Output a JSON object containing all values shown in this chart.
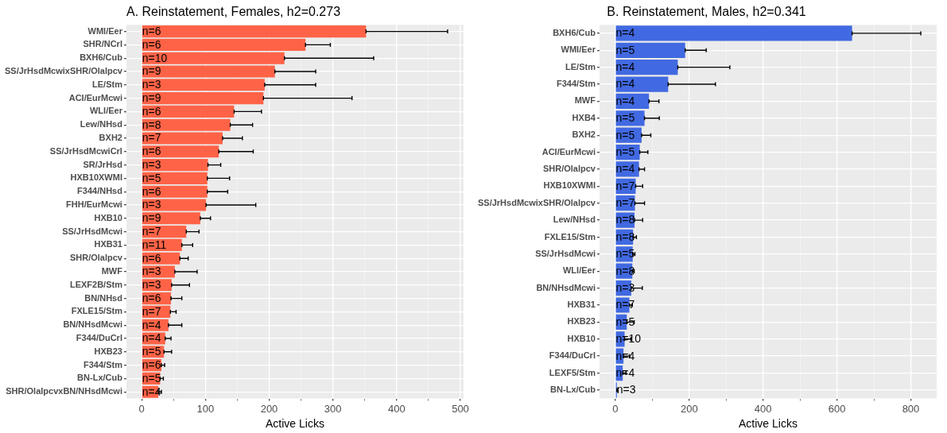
{
  "chart_data": [
    {
      "type": "bar",
      "orientation": "horizontal",
      "title": "A. Reinstatement, Females, h2=0.273",
      "xlabel": "Active Licks",
      "grid": true,
      "legend": false,
      "categories": [
        "WMI/Eer",
        "SHR/NCrl",
        "BXH6/Cub",
        "SS/JrHsdMcwixSHR/Olalpcv",
        "LE/Stm",
        "ACI/EurMcwi",
        "WLI/Eer",
        "Lew/NHsd",
        "BXH2",
        "SS/JrHsdMcwiCrl",
        "SR/JrHsd",
        "HXB10XWMI",
        "F344/NHsd",
        "FHH/EurMcwi",
        "HXB10",
        "SS/JrHsdMcwi",
        "HXB31",
        "SHR/Olalpcv",
        "MWF",
        "LEXF2B/Stm",
        "BN/NHsd",
        "FXLE15/Stm",
        "BN/NHsdMcwi",
        "F344/DuCrl",
        "HXB23",
        "F344/Stm",
        "BN-Lx/Cub",
        "SHR/OlalpcvxBN/NHsdMcwi"
      ],
      "series": [
        {
          "color": "#ff6347",
          "values": [
            352,
            257,
            224,
            209,
            193,
            191,
            145,
            139,
            127,
            121,
            104,
            103,
            103,
            101,
            92,
            70,
            63,
            60,
            52,
            47,
            46,
            45,
            42,
            37,
            35,
            31,
            29,
            26
          ],
          "errors": [
            [
              352,
              480
            ],
            [
              257,
              296
            ],
            [
              224,
              364
            ],
            [
              209,
              273
            ],
            [
              193,
              273
            ],
            [
              191,
              330
            ],
            [
              145,
              188
            ],
            [
              139,
              174
            ],
            [
              127,
              158
            ],
            [
              121,
              175
            ],
            [
              104,
              124
            ],
            [
              103,
              138
            ],
            [
              103,
              135
            ],
            [
              101,
              179
            ],
            [
              92,
              108
            ],
            [
              70,
              90
            ],
            [
              63,
              80
            ],
            [
              60,
              73
            ],
            [
              52,
              87
            ],
            [
              47,
              75
            ],
            [
              46,
              63
            ],
            [
              45,
              54
            ],
            [
              42,
              63
            ],
            [
              37,
              46
            ],
            [
              35,
              47
            ],
            [
              31,
              36
            ],
            [
              29,
              34
            ],
            [
              26,
              31
            ]
          ]
        }
      ],
      "annotations": [
        {
          "text": "n=6",
          "y": "WMI/Eer"
        },
        {
          "text": "n=6",
          "y": "SHR/NCrl"
        },
        {
          "text": "n=10",
          "y": "BXH6/Cub"
        },
        {
          "text": "n=9",
          "y": "SS/JrHsdMcwixSHR/Olalpcv"
        },
        {
          "text": "n=3",
          "y": "LE/Stm"
        },
        {
          "text": "n=9",
          "y": "ACI/EurMcwi"
        },
        {
          "text": "n=6",
          "y": "WLI/Eer"
        },
        {
          "text": "n=8",
          "y": "Lew/NHsd"
        },
        {
          "text": "n=7",
          "y": "BXH2"
        },
        {
          "text": "n=6",
          "y": "SS/JrHsdMcwiCrl"
        },
        {
          "text": "n=3",
          "y": "SR/JrHsd"
        },
        {
          "text": "n=5",
          "y": "HXB10XWMI"
        },
        {
          "text": "n=6",
          "y": "F344/NHsd"
        },
        {
          "text": "n=3",
          "y": "FHH/EurMcwi"
        },
        {
          "text": "n=9",
          "y": "HXB10"
        },
        {
          "text": "n=7",
          "y": "SS/JrHsdMcwi"
        },
        {
          "text": "n=11",
          "y": "HXB31"
        },
        {
          "text": "n=6",
          "y": "SHR/Olalpcv"
        },
        {
          "text": "n=3",
          "y": "MWF"
        },
        {
          "text": "n=3",
          "y": "LEXF2B/Stm"
        },
        {
          "text": "n=6",
          "y": "BN/NHsd"
        },
        {
          "text": "n=7",
          "y": "FXLE15/Stm"
        },
        {
          "text": "n=4",
          "y": "BN/NHsdMcwi"
        },
        {
          "text": "n=4",
          "y": "F344/DuCrl"
        },
        {
          "text": "n=5",
          "y": "HXB23"
        },
        {
          "text": "n=6",
          "y": "F344/Stm"
        },
        {
          "text": "n=5",
          "y": "BN-Lx/Cub"
        },
        {
          "text": "n=4",
          "y": "SHR/OlalpcvxBN/NHsdMcwi"
        }
      ],
      "xlim": [
        -24,
        505
      ],
      "xticks": [
        0,
        {
          "value": 50,
          "label": null
        },
        100,
        {
          "value": 150,
          "label": null
        },
        200,
        {
          "value": 250,
          "label": null
        },
        300,
        {
          "value": 350,
          "label": null
        },
        400,
        {
          "value": 450,
          "label": null
        },
        500
      ]
    },
    {
      "type": "bar",
      "orientation": "horizontal",
      "title": "B. Reinstatement, Males, h2=0.341",
      "xlabel": "Active Licks",
      "grid": true,
      "legend": false,
      "categories": [
        "BXH6/Cub",
        "WMI/Eer",
        "LE/Stm",
        "F344/Stm",
        "MWF",
        "HXB4",
        "BXH2",
        "ACI/EurMcwi",
        "SHR/Olalpcv",
        "HXB10XWMI",
        "SS/JrHsdMcwixSHR/Olalpcv",
        "Lew/NHsd",
        "FXLE15/Stm",
        "SS/JrHsdMcwi",
        "WLI/Eer",
        "BN/NHsdMcwi",
        "HXB31",
        "HXB23",
        "HXB10",
        "F344/DuCrl",
        "LEXF5/Stm",
        "BN-Lx/Cub"
      ],
      "series": [
        {
          "color": "#4169e1",
          "values": [
            641,
            189,
            169,
            143,
            91,
            79,
            71,
            66,
            64,
            55,
            53,
            52,
            48,
            47,
            46,
            43,
            38,
            31,
            25,
            22,
            20,
            4
          ],
          "errors": [
            [
              641,
              827
            ],
            [
              189,
              246
            ],
            [
              169,
              310
            ],
            [
              143,
              271
            ],
            [
              91,
              118
            ],
            [
              79,
              119
            ],
            [
              71,
              96
            ],
            [
              66,
              88
            ],
            [
              64,
              79
            ],
            [
              55,
              74
            ],
            [
              53,
              79
            ],
            [
              52,
              74
            ],
            [
              48,
              57
            ],
            [
              47,
              53
            ],
            [
              46,
              51
            ],
            [
              43,
              73
            ],
            [
              38,
              46
            ],
            [
              31,
              51
            ],
            [
              25,
              42
            ],
            [
              22,
              38
            ],
            [
              20,
              29
            ],
            [
              4,
              7
            ]
          ]
        }
      ],
      "annotations": [
        {
          "text": "n=4",
          "y": "BXH6/Cub"
        },
        {
          "text": "n=5",
          "y": "WMI/Eer"
        },
        {
          "text": "n=4",
          "y": "LE/Stm"
        },
        {
          "text": "n=4",
          "y": "F344/Stm"
        },
        {
          "text": "n=4",
          "y": "MWF"
        },
        {
          "text": "n=5",
          "y": "HXB4"
        },
        {
          "text": "n=5",
          "y": "BXH2"
        },
        {
          "text": "n=5",
          "y": "ACI/EurMcwi"
        },
        {
          "text": "n=4",
          "y": "SHR/Olalpcv"
        },
        {
          "text": "n=7",
          "y": "HXB10XWMI"
        },
        {
          "text": "n=7",
          "y": "SS/JrHsdMcwixSHR/Olalpcv"
        },
        {
          "text": "n=8",
          "y": "Lew/NHsd"
        },
        {
          "text": "n=8",
          "y": "FXLE15/Stm"
        },
        {
          "text": "n=5",
          "y": "SS/JrHsdMcwi"
        },
        {
          "text": "n=8",
          "y": "WLI/Eer"
        },
        {
          "text": "n=3",
          "y": "BN/NHsdMcwi"
        },
        {
          "text": "n=7",
          "y": "HXB31"
        },
        {
          "text": "n=5",
          "y": "HXB23"
        },
        {
          "text": "n=10",
          "y": "HXB10"
        },
        {
          "text": "n=4",
          "y": "F344/DuCrl"
        },
        {
          "text": "n=4",
          "y": "LEXF5/Stm"
        },
        {
          "text": "n=3",
          "x": 4,
          "y": "BN-Lx/Cub"
        }
      ],
      "xlim": [
        -43,
        870
      ],
      "xticks": [
        0,
        {
          "value": 100,
          "label": null
        },
        200,
        {
          "value": 300,
          "label": null
        },
        400,
        {
          "value": 500,
          "label": null
        },
        600,
        {
          "value": 700,
          "label": null
        },
        800
      ]
    }
  ]
}
